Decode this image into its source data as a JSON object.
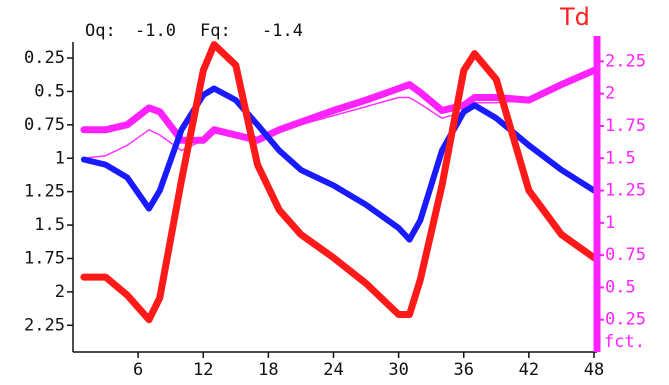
{
  "chart_data": {
    "type": "line",
    "title": "Td",
    "annotations": [
      "Oq:",
      "-1.0",
      "Fq:",
      "-1.4"
    ],
    "y_label": "fct.",
    "x": [
      1,
      3,
      5,
      7,
      8,
      10,
      12,
      13,
      15,
      17,
      19,
      21,
      24,
      27,
      30,
      31,
      32,
      34,
      36,
      37,
      39,
      42,
      45,
      48
    ],
    "xlim": [
      0,
      48
    ],
    "xticks": [
      6,
      12,
      18,
      24,
      30,
      36,
      42,
      48
    ],
    "ylim": [
      0,
      2.4
    ],
    "yticks": [
      0.25,
      0.5,
      0.75,
      1.0,
      1.25,
      1.5,
      1.75,
      2.0,
      2.25
    ],
    "y2lim": [
      2.45,
      0.13
    ],
    "y2ticks": [
      0.25,
      0.5,
      0.75,
      1.0,
      1.25,
      1.5,
      1.75,
      2.0,
      2.25
    ],
    "series": [
      {
        "color": "#ff33ff",
        "values": [
          1.5,
          1.52,
          1.6,
          1.72,
          1.68,
          1.56,
          1.64,
          1.7,
          1.66,
          1.66,
          1.72,
          1.76,
          1.83,
          1.9,
          1.97,
          1.97,
          1.92,
          1.81,
          1.86,
          1.93,
          1.93,
          1.95,
          2.07,
          2.17
        ]
      },
      {
        "color": "#ff22ff",
        "values": [
          1.72,
          1.72,
          1.76,
          1.89,
          1.86,
          1.64,
          1.64,
          1.72,
          1.68,
          1.64,
          1.72,
          1.78,
          1.87,
          1.95,
          2.04,
          2.07,
          2.01,
          1.87,
          1.91,
          1.97,
          1.97,
          1.95,
          2.07,
          2.18
        ]
      },
      {
        "color": "#1a1aff",
        "values": [
          1.49,
          1.45,
          1.35,
          1.11,
          1.25,
          1.72,
          1.99,
          2.04,
          1.95,
          1.76,
          1.56,
          1.41,
          1.29,
          1.14,
          0.96,
          0.87,
          1.02,
          1.56,
          1.86,
          1.91,
          1.81,
          1.6,
          1.41,
          1.25
        ]
      },
      {
        "color": "#ff1a1a",
        "values": [
          0.58,
          0.58,
          0.44,
          0.25,
          0.42,
          1.33,
          2.18,
          2.38,
          2.22,
          1.45,
          1.1,
          0.91,
          0.73,
          0.53,
          0.29,
          0.29,
          0.56,
          1.29,
          2.18,
          2.31,
          2.11,
          1.25,
          0.91,
          0.73
        ]
      }
    ]
  }
}
